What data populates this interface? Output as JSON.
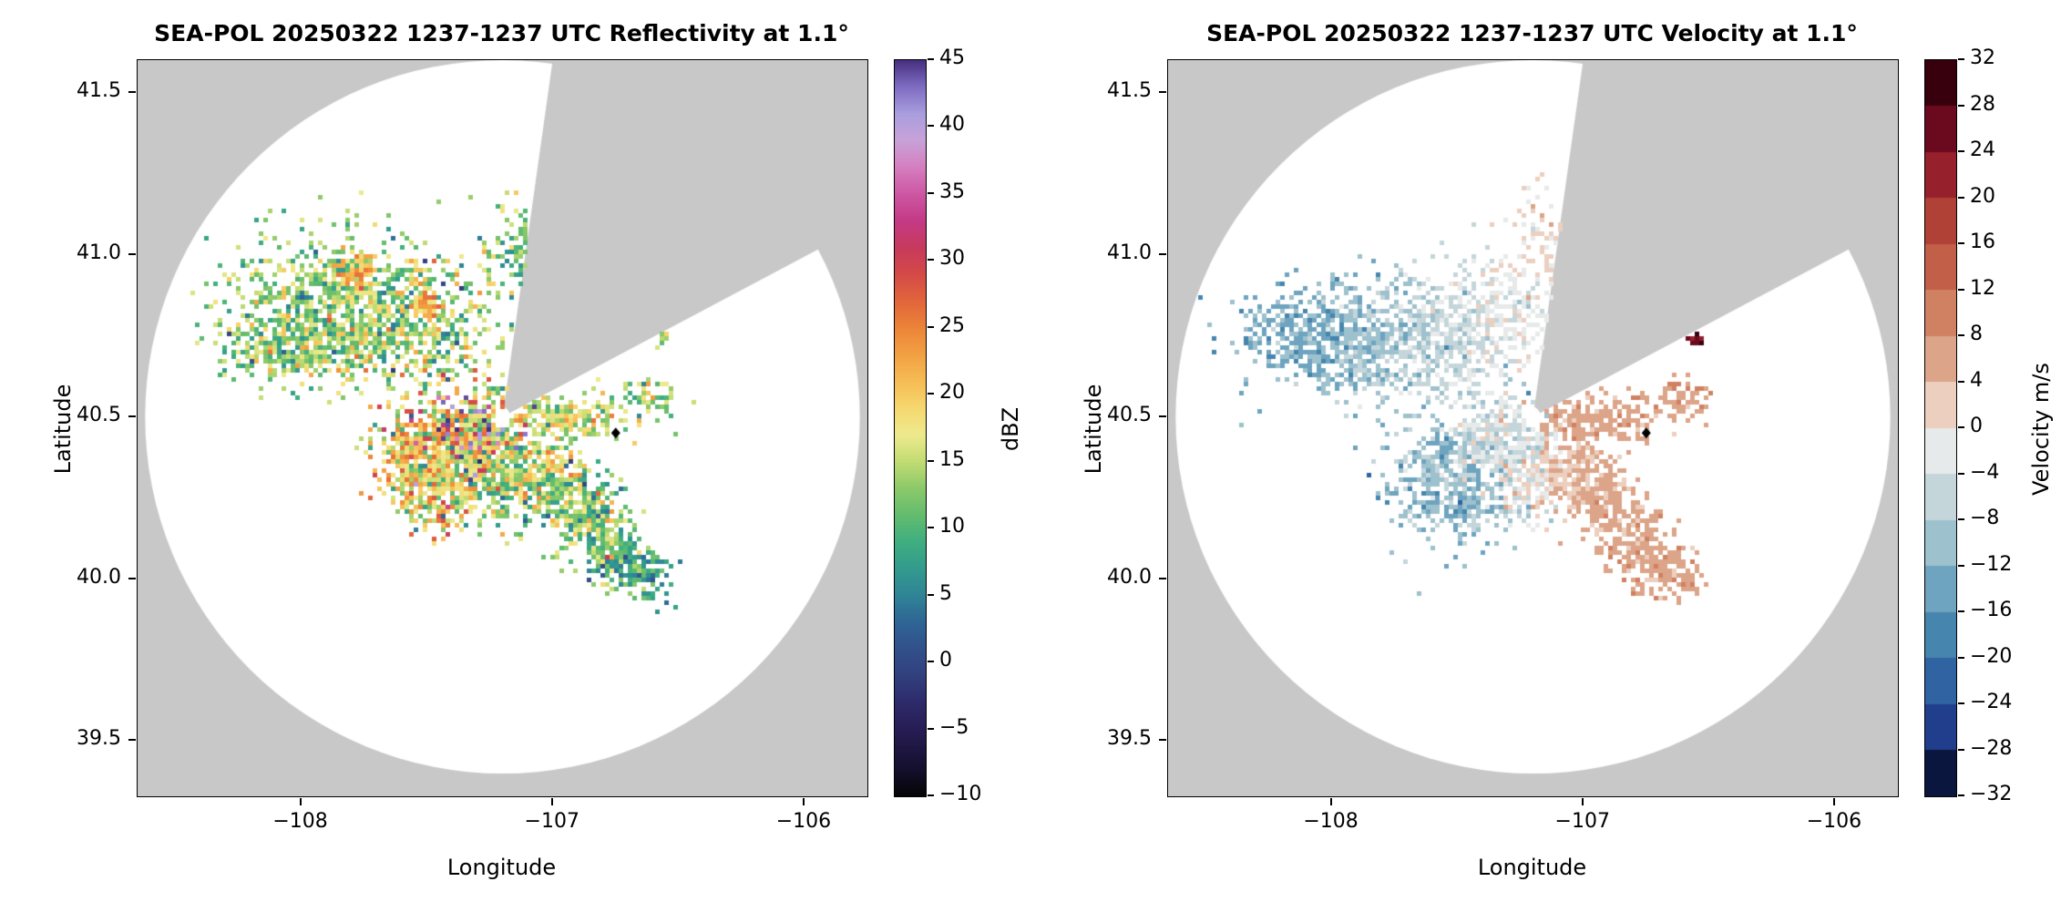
{
  "figure": {
    "background": "#ffffff"
  },
  "chart_data": [
    {
      "type": "heatmap",
      "variant": "radar-ppi",
      "title": "SEA-POL 20250322 1237-1237 UTC Reflectivity at 1.1°",
      "xlabel": "Longitude",
      "ylabel": "Latitude",
      "xlim": [
        -108.65,
        -105.75
      ],
      "ylim": [
        39.33,
        41.6
      ],
      "xticks": [
        {
          "v": -108,
          "label": "−108"
        },
        {
          "v": -107,
          "label": "−107"
        },
        {
          "v": -106,
          "label": "−106"
        }
      ],
      "yticks": [
        {
          "v": 39.5,
          "label": "39.5"
        },
        {
          "v": 40.0,
          "label": "40.0"
        },
        {
          "v": 40.5,
          "label": "40.5"
        },
        {
          "v": 41.0,
          "label": "41.0"
        },
        {
          "v": 41.5,
          "label": "41.5"
        }
      ],
      "radar": {
        "center": [
          -107.2,
          40.5
        ],
        "radius_lon": 1.42,
        "radius_lat": 1.1,
        "inner_hole": 0.03,
        "missing_sector_deg": [
          8,
          62
        ],
        "outside_color": "#c8c8c8",
        "coverage_color": "#ffffff"
      },
      "site_marker": {
        "lon": -106.75,
        "lat": 40.45,
        "color": "#000000",
        "shape": "diamond"
      },
      "colorbar": {
        "label": "dBZ",
        "vmin": -10,
        "vmax": 45,
        "discrete": false,
        "ticks": [
          {
            "v": 45,
            "label": "45"
          },
          {
            "v": 40,
            "label": "40"
          },
          {
            "v": 35,
            "label": "35"
          },
          {
            "v": 30,
            "label": "30"
          },
          {
            "v": 25,
            "label": "25"
          },
          {
            "v": 20,
            "label": "20"
          },
          {
            "v": 15,
            "label": "15"
          },
          {
            "v": 10,
            "label": "10"
          },
          {
            "v": 5,
            "label": "5"
          },
          {
            "v": 0,
            "label": "0"
          },
          {
            "v": -5,
            "label": "−5"
          },
          {
            "v": -10,
            "label": "−10"
          }
        ],
        "stops": [
          [
            -10,
            "#050505"
          ],
          [
            -8,
            "#140f2d"
          ],
          [
            -5,
            "#271d54"
          ],
          [
            -3,
            "#2e2a6b"
          ],
          [
            -1,
            "#31407e"
          ],
          [
            1,
            "#32508a"
          ],
          [
            3,
            "#2f6595"
          ],
          [
            5,
            "#2f8496"
          ],
          [
            7,
            "#339b8e"
          ],
          [
            9,
            "#3fae80"
          ],
          [
            11,
            "#63bc6e"
          ],
          [
            13,
            "#8cc96a"
          ],
          [
            15,
            "#c2dc73"
          ],
          [
            17,
            "#eeea8e"
          ],
          [
            19,
            "#f6d86f"
          ],
          [
            21,
            "#f6bc55"
          ],
          [
            23,
            "#f2a144"
          ],
          [
            25,
            "#ec8438"
          ],
          [
            27,
            "#e2663c"
          ],
          [
            29,
            "#d44a47"
          ],
          [
            31,
            "#c73a5d"
          ],
          [
            33,
            "#c43a86"
          ],
          [
            35,
            "#cd57a3"
          ],
          [
            37,
            "#d57fc0"
          ],
          [
            39,
            "#c8a2d8"
          ],
          [
            41,
            "#a99ede"
          ],
          [
            43,
            "#7f6cc2"
          ],
          [
            45,
            "#46307f"
          ]
        ]
      },
      "echo_clusters": [
        {
          "lon": -107.85,
          "lat": 40.88,
          "sx": 0.22,
          "sy": 0.1,
          "n": 600,
          "mean": 13,
          "sd": 4,
          "seed": 11
        },
        {
          "lon": -107.55,
          "lat": 40.78,
          "sx": 0.18,
          "sy": 0.1,
          "n": 500,
          "mean": 14,
          "sd": 5,
          "seed": 12
        },
        {
          "lon": -108.1,
          "lat": 40.72,
          "sx": 0.12,
          "sy": 0.06,
          "n": 220,
          "mean": 12,
          "sd": 4,
          "seed": 13
        },
        {
          "lon": -107.92,
          "lat": 40.7,
          "sx": 0.14,
          "sy": 0.05,
          "n": 160,
          "mean": 15,
          "sd": 5,
          "seed": 14
        },
        {
          "lon": -107.78,
          "lat": 40.95,
          "sx": 0.04,
          "sy": 0.03,
          "n": 60,
          "mean": 22,
          "sd": 3,
          "seed": 15
        },
        {
          "lon": -107.5,
          "lat": 40.83,
          "sx": 0.03,
          "sy": 0.03,
          "n": 45,
          "mean": 22,
          "sd": 3,
          "seed": 16
        },
        {
          "lon": -107.14,
          "lat": 41.02,
          "sx": 0.08,
          "sy": 0.09,
          "n": 110,
          "mean": 12,
          "sd": 4,
          "seed": 17
        },
        {
          "lon": -107.33,
          "lat": 40.44,
          "sx": 0.09,
          "sy": 0.045,
          "n": 260,
          "mean": 40,
          "sd": 4,
          "seed": 18
        },
        {
          "lon": -107.3,
          "lat": 40.42,
          "sx": 0.14,
          "sy": 0.09,
          "n": 480,
          "mean": 18,
          "sd": 7,
          "seed": 19
        },
        {
          "lon": -107.52,
          "lat": 40.38,
          "sx": 0.1,
          "sy": 0.08,
          "n": 340,
          "mean": 20,
          "sd": 6,
          "seed": 20
        },
        {
          "lon": -107.45,
          "lat": 40.28,
          "sx": 0.1,
          "sy": 0.06,
          "n": 260,
          "mean": 19,
          "sd": 5,
          "seed": 21
        },
        {
          "lon": -107.2,
          "lat": 40.3,
          "sx": 0.08,
          "sy": 0.07,
          "n": 200,
          "mean": 14,
          "sd": 5,
          "seed": 22
        },
        {
          "lon": -107.05,
          "lat": 40.33,
          "sx": 0.07,
          "sy": 0.06,
          "n": 180,
          "mean": 15,
          "sd": 5,
          "seed": 23
        },
        {
          "lon": -106.93,
          "lat": 40.24,
          "sx": 0.07,
          "sy": 0.06,
          "n": 180,
          "mean": 13,
          "sd": 5,
          "seed": 24
        },
        {
          "lon": -106.82,
          "lat": 40.14,
          "sx": 0.07,
          "sy": 0.06,
          "n": 160,
          "mean": 12,
          "sd": 5,
          "seed": 25
        },
        {
          "lon": -106.72,
          "lat": 40.05,
          "sx": 0.06,
          "sy": 0.05,
          "n": 120,
          "mean": 10,
          "sd": 4,
          "seed": 26
        },
        {
          "lon": -106.62,
          "lat": 40.0,
          "sx": 0.05,
          "sy": 0.04,
          "n": 60,
          "mean": 8,
          "sd": 3,
          "seed": 27
        },
        {
          "lon": -106.93,
          "lat": 40.5,
          "sx": 0.13,
          "sy": 0.035,
          "n": 210,
          "mean": 16,
          "sd": 4,
          "seed": 28
        },
        {
          "lon": -106.62,
          "lat": 40.56,
          "sx": 0.06,
          "sy": 0.03,
          "n": 60,
          "mean": 13,
          "sd": 4,
          "seed": 29
        },
        {
          "lon": -106.56,
          "lat": 40.74,
          "sx": 0.015,
          "sy": 0.012,
          "n": 15,
          "mean": 12,
          "sd": 3,
          "seed": 30
        }
      ]
    },
    {
      "type": "heatmap",
      "variant": "radar-ppi",
      "title": "SEA-POL 20250322 1237-1237 UTC Velocity at 1.1°",
      "xlabel": "Longitude",
      "ylabel": "Latitude",
      "xlim": [
        -108.65,
        -105.75
      ],
      "ylim": [
        39.33,
        41.6
      ],
      "xticks": [
        {
          "v": -108,
          "label": "−108"
        },
        {
          "v": -107,
          "label": "−107"
        },
        {
          "v": -106,
          "label": "−106"
        }
      ],
      "yticks": [
        {
          "v": 39.5,
          "label": "39.5"
        },
        {
          "v": 40.0,
          "label": "40.0"
        },
        {
          "v": 40.5,
          "label": "40.5"
        },
        {
          "v": 41.0,
          "label": "41.0"
        },
        {
          "v": 41.5,
          "label": "41.5"
        }
      ],
      "radar": {
        "center": [
          -107.2,
          40.5
        ],
        "radius_lon": 1.42,
        "radius_lat": 1.1,
        "inner_hole": 0.03,
        "missing_sector_deg": [
          8,
          62
        ],
        "outside_color": "#c8c8c8",
        "coverage_color": "#ffffff"
      },
      "site_marker": {
        "lon": -106.75,
        "lat": 40.45,
        "color": "#000000",
        "shape": "diamond"
      },
      "colorbar": {
        "label": "Velocity m/s",
        "vmin": -32,
        "vmax": 32,
        "discrete": true,
        "ticks": [
          {
            "v": 32,
            "label": "32"
          },
          {
            "v": 28,
            "label": "28"
          },
          {
            "v": 24,
            "label": "24"
          },
          {
            "v": 20,
            "label": "20"
          },
          {
            "v": 16,
            "label": "16"
          },
          {
            "v": 12,
            "label": "12"
          },
          {
            "v": 8,
            "label": "8"
          },
          {
            "v": 4,
            "label": "4"
          },
          {
            "v": 0,
            "label": "0"
          },
          {
            "v": -4,
            "label": "−4"
          },
          {
            "v": -8,
            "label": "−8"
          },
          {
            "v": -12,
            "label": "−12"
          },
          {
            "v": -16,
            "label": "−16"
          },
          {
            "v": -20,
            "label": "−20"
          },
          {
            "v": -24,
            "label": "−24"
          },
          {
            "v": -28,
            "label": "−28"
          },
          {
            "v": -32,
            "label": "−32"
          }
        ],
        "band_colors": [
          "#38000d",
          "#6b0a1f",
          "#96202b",
          "#b04136",
          "#c25f48",
          "#d08162",
          "#dca488",
          "#eccfbf",
          "#e7eaea",
          "#c5d6db",
          "#9dc1cd",
          "#6ea4bf",
          "#4685ae",
          "#2f63a2",
          "#203e8b",
          "#0b163f"
        ]
      },
      "echo_clusters": [
        {
          "lon": -108.05,
          "lat": 40.75,
          "sx": 0.15,
          "sy": 0.08,
          "n": 450,
          "mean": -13,
          "sd": 2.5,
          "seed": 41
        },
        {
          "lon": -107.75,
          "lat": 40.72,
          "sx": 0.15,
          "sy": 0.1,
          "n": 450,
          "mean": -9,
          "sd": 2.5,
          "seed": 42
        },
        {
          "lon": -107.5,
          "lat": 40.76,
          "sx": 0.12,
          "sy": 0.1,
          "n": 300,
          "mean": -5,
          "sd": 2,
          "seed": 43
        },
        {
          "lon": -107.3,
          "lat": 40.8,
          "sx": 0.08,
          "sy": 0.08,
          "n": 150,
          "mean": -2,
          "sd": 2,
          "seed": 44
        },
        {
          "lon": -107.14,
          "lat": 41.02,
          "sx": 0.08,
          "sy": 0.09,
          "n": 110,
          "mean": 1,
          "sd": 2,
          "seed": 45
        },
        {
          "lon": -107.52,
          "lat": 40.3,
          "sx": 0.12,
          "sy": 0.09,
          "n": 500,
          "mean": -11,
          "sd": 3,
          "seed": 46
        },
        {
          "lon": -107.32,
          "lat": 40.44,
          "sx": 0.1,
          "sy": 0.07,
          "n": 350,
          "mean": -4,
          "sd": 3,
          "seed": 47
        },
        {
          "lon": -107.2,
          "lat": 40.31,
          "sx": 0.07,
          "sy": 0.06,
          "n": 160,
          "mean": -1,
          "sd": 3,
          "seed": 48
        },
        {
          "lon": -107.05,
          "lat": 40.33,
          "sx": 0.07,
          "sy": 0.06,
          "n": 180,
          "mean": 4,
          "sd": 1.5,
          "seed": 49
        },
        {
          "lon": -106.93,
          "lat": 40.24,
          "sx": 0.07,
          "sy": 0.06,
          "n": 180,
          "mean": 5,
          "sd": 1.5,
          "seed": 50
        },
        {
          "lon": -106.82,
          "lat": 40.14,
          "sx": 0.07,
          "sy": 0.06,
          "n": 160,
          "mean": 6,
          "sd": 1.5,
          "seed": 51
        },
        {
          "lon": -106.72,
          "lat": 40.05,
          "sx": 0.06,
          "sy": 0.05,
          "n": 120,
          "mean": 6,
          "sd": 1.5,
          "seed": 52
        },
        {
          "lon": -106.62,
          "lat": 40.0,
          "sx": 0.05,
          "sy": 0.04,
          "n": 60,
          "mean": 6,
          "sd": 1.5,
          "seed": 53
        },
        {
          "lon": -106.93,
          "lat": 40.5,
          "sx": 0.13,
          "sy": 0.035,
          "n": 210,
          "mean": 6,
          "sd": 1.5,
          "seed": 54
        },
        {
          "lon": -106.62,
          "lat": 40.56,
          "sx": 0.06,
          "sy": 0.03,
          "n": 60,
          "mean": 7,
          "sd": 1.5,
          "seed": 55
        },
        {
          "lon": -106.56,
          "lat": 40.74,
          "sx": 0.015,
          "sy": 0.012,
          "n": 16,
          "mean": 27,
          "sd": 2,
          "seed": 56
        }
      ]
    }
  ]
}
